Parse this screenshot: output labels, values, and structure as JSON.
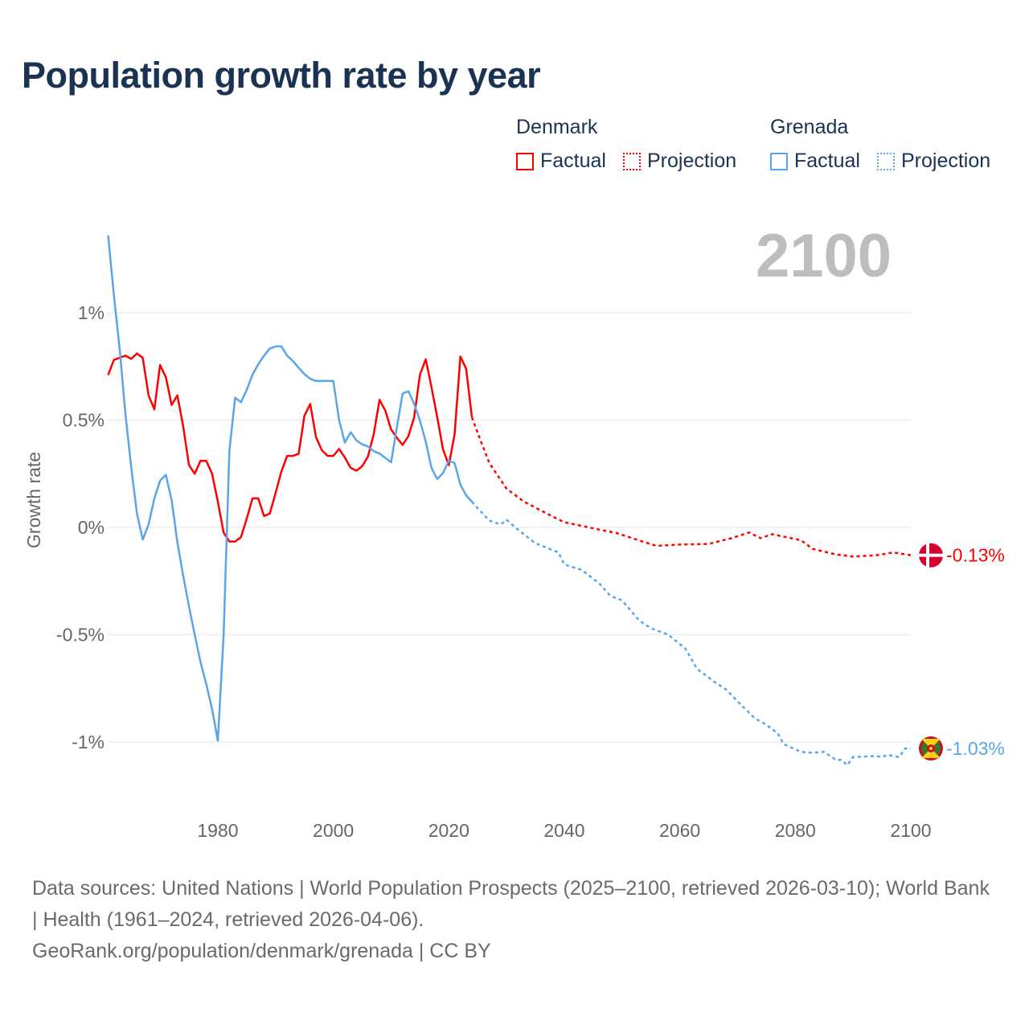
{
  "title": "Population growth rate by year",
  "legend": {
    "groups": [
      {
        "name": "Denmark",
        "factual": "Factual",
        "projection": "Projection",
        "color": "#ff0000"
      },
      {
        "name": "Grenada",
        "factual": "Factual",
        "projection": "Projection",
        "color": "#5aa5ea"
      }
    ]
  },
  "current_year": "2100",
  "chart_data": {
    "type": "line",
    "title": "Population growth rate by year",
    "ylabel": "Growth rate",
    "xlabel": "",
    "xlim": [
      1961,
      2100
    ],
    "ylim": [
      -1.15,
      1.4
    ],
    "grid": true,
    "legend_position": "top-right",
    "x_ticks": [
      {
        "value": 1980,
        "label": "1980"
      },
      {
        "value": 2000,
        "label": "2000"
      },
      {
        "value": 2020,
        "label": "2020"
      },
      {
        "value": 2040,
        "label": "2040"
      },
      {
        "value": 2060,
        "label": "2060"
      },
      {
        "value": 2080,
        "label": "2080"
      },
      {
        "value": 2100,
        "label": "2100"
      }
    ],
    "y_ticks": [
      {
        "value": 1,
        "label": "1%"
      },
      {
        "value": 0.5,
        "label": "0.5%"
      },
      {
        "value": 0,
        "label": "0%"
      },
      {
        "value": -0.5,
        "label": "-0.5%"
      },
      {
        "value": -1,
        "label": "-1%"
      }
    ],
    "series": [
      {
        "name": "Denmark Factual",
        "color": "#ff0000",
        "style": "solid",
        "x": [
          1961,
          1962,
          1963,
          1964,
          1965,
          1966,
          1967,
          1968,
          1969,
          1970,
          1971,
          1972,
          1973,
          1974,
          1975,
          1976,
          1977,
          1978,
          1979,
          1980,
          1981,
          1982,
          1983,
          1984,
          1985,
          1986,
          1987,
          1988,
          1989,
          1990,
          1991,
          1992,
          1993,
          1994,
          1995,
          1996,
          1997,
          1998,
          1999,
          2000,
          2001,
          2002,
          2003,
          2004,
          2005,
          2006,
          2007,
          2008,
          2009,
          2010,
          2011,
          2012,
          2013,
          2014,
          2015,
          2016,
          2017,
          2018,
          2019,
          2020,
          2021,
          2022,
          2023,
          2024
        ],
        "y": [
          0.71,
          0.78,
          0.79,
          0.8,
          0.785,
          0.81,
          0.79,
          0.615,
          0.55,
          0.756,
          0.7,
          0.57,
          0.615,
          0.47,
          0.29,
          0.25,
          0.31,
          0.31,
          0.25,
          0.12,
          -0.025,
          -0.066,
          -0.066,
          -0.046,
          0.04,
          0.135,
          0.135,
          0.053,
          0.064,
          0.16,
          0.26,
          0.333,
          0.333,
          0.343,
          0.52,
          0.575,
          0.42,
          0.36,
          0.333,
          0.333,
          0.365,
          0.325,
          0.277,
          0.264,
          0.285,
          0.33,
          0.434,
          0.594,
          0.544,
          0.456,
          0.418,
          0.384,
          0.425,
          0.513,
          0.712,
          0.783,
          0.654,
          0.513,
          0.363,
          0.29,
          0.434,
          0.796,
          0.74,
          0.513
        ]
      },
      {
        "name": "Denmark Projection",
        "color": "#ff0000",
        "style": "dotted",
        "x": [
          2024,
          2025,
          2027,
          2030,
          2033,
          2038,
          2040,
          2046,
          2049,
          2054,
          2056,
          2060,
          2065,
          2069,
          2072,
          2074,
          2076,
          2081,
          2083,
          2087,
          2090,
          2094,
          2097,
          2100
        ],
        "y": [
          0.513,
          0.44,
          0.3,
          0.18,
          0.12,
          0.05,
          0.024,
          -0.01,
          -0.026,
          -0.07,
          -0.086,
          -0.08,
          -0.077,
          -0.05,
          -0.024,
          -0.05,
          -0.032,
          -0.06,
          -0.1,
          -0.126,
          -0.136,
          -0.13,
          -0.117,
          -0.13
        ]
      },
      {
        "name": "Grenada Factual",
        "color": "#5aa5ea",
        "style": "solid",
        "x": [
          1961,
          1962,
          1963,
          1964,
          1965,
          1966,
          1967,
          1968,
          1969,
          1970,
          1971,
          1972,
          1973,
          1974,
          1975,
          1976,
          1977,
          1978,
          1979,
          1980,
          1981,
          1982,
          1983,
          1984,
          1985,
          1986,
          1987,
          1988,
          1989,
          1990,
          1991,
          1992,
          1993,
          1994,
          1995,
          1996,
          1997,
          1998,
          1999,
          2000,
          2001,
          2002,
          2003,
          2004,
          2005,
          2006,
          2007,
          2008,
          2009,
          2010,
          2011,
          2012,
          2013,
          2014,
          2015,
          2016,
          2017,
          2018,
          2019,
          2020,
          2021,
          2022,
          2023,
          2024
        ],
        "y": [
          1.36,
          1.08,
          0.83,
          0.53,
          0.28,
          0.064,
          -0.057,
          0.013,
          0.135,
          0.217,
          0.245,
          0.127,
          -0.07,
          -0.226,
          -0.368,
          -0.5,
          -0.627,
          -0.73,
          -0.847,
          -0.994,
          -0.5,
          0.355,
          0.604,
          0.583,
          0.64,
          0.712,
          0.76,
          0.8,
          0.833,
          0.843,
          0.843,
          0.8,
          0.775,
          0.744,
          0.714,
          0.692,
          0.682,
          0.682,
          0.682,
          0.682,
          0.5,
          0.395,
          0.443,
          0.405,
          0.387,
          0.377,
          0.355,
          0.344,
          0.324,
          0.303,
          0.465,
          0.623,
          0.634,
          0.575,
          0.497,
          0.4,
          0.277,
          0.225,
          0.253,
          0.311,
          0.3,
          0.198,
          0.15,
          0.12
        ]
      },
      {
        "name": "Grenada Projection",
        "color": "#5aa5ea",
        "style": "dotted",
        "x": [
          2024,
          2025,
          2027,
          2029,
          2030,
          2032,
          2035,
          2039,
          2040,
          2043,
          2046,
          2048,
          2050,
          2053,
          2055,
          2058,
          2061,
          2063,
          2066,
          2068,
          2071,
          2073,
          2075,
          2077,
          2078,
          2081,
          2083,
          2085,
          2087,
          2088,
          2089,
          2090,
          2094,
          2095,
          2096,
          2098,
          2099,
          2100
        ],
        "y": [
          0.12,
          0.089,
          0.032,
          0.014,
          0.035,
          -0.011,
          -0.074,
          -0.117,
          -0.173,
          -0.198,
          -0.26,
          -0.32,
          -0.34,
          -0.435,
          -0.47,
          -0.5,
          -0.566,
          -0.66,
          -0.72,
          -0.755,
          -0.837,
          -0.89,
          -0.92,
          -0.96,
          -1.01,
          -1.046,
          -1.05,
          -1.046,
          -1.083,
          -1.083,
          -1.108,
          -1.07,
          -1.065,
          -1.07,
          -1.06,
          -1.07,
          -1.03,
          -1.03
        ]
      }
    ],
    "end_labels": [
      {
        "country": "Denmark",
        "value": -0.13,
        "label": "-0.13%",
        "color": "#ff0000"
      },
      {
        "country": "Grenada",
        "value": -1.03,
        "label": "-1.03%",
        "color": "#5aa5ea"
      }
    ]
  },
  "sources": {
    "line1": "Data sources: United Nations | World Population Prospects (2025–2100, retrieved 2026-03-10); World Bank | Health (1961–2024, retrieved 2026-04-06).",
    "line2": "GeoRank.org/population/denmark/grenada | CC BY"
  }
}
